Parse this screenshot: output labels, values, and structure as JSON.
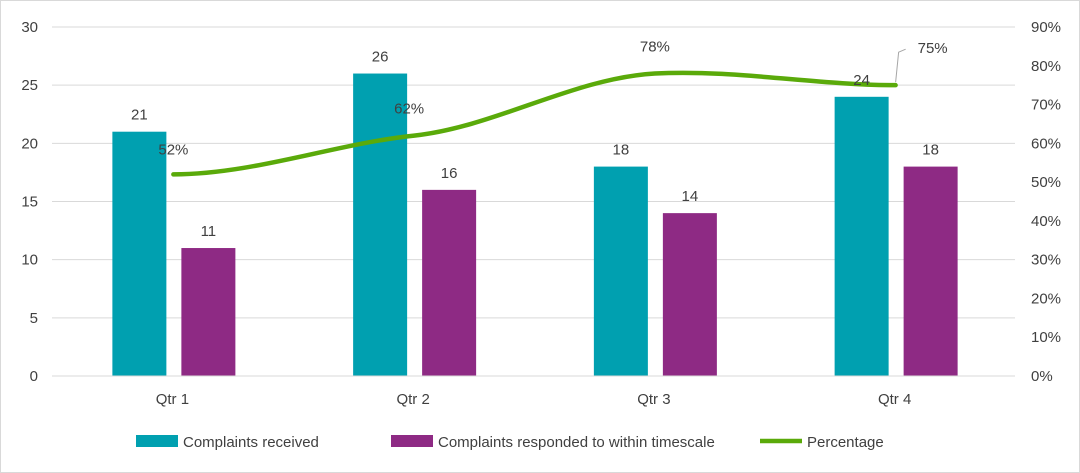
{
  "chart_data": {
    "type": "bar",
    "categories": [
      "Qtr 1",
      "Qtr 2",
      "Qtr 3",
      "Qtr 4"
    ],
    "series": [
      {
        "name": "Complaints received",
        "type": "bar",
        "axis": "left",
        "color": "#00A0B0",
        "values": [
          21,
          26,
          18,
          24
        ],
        "labels": [
          "21",
          "26",
          "18",
          "24"
        ]
      },
      {
        "name": "Complaints responded to within timescale",
        "type": "bar",
        "axis": "left",
        "color": "#8E2A84",
        "values": [
          11,
          16,
          14,
          18
        ],
        "labels": [
          "11",
          "16",
          "14",
          "18"
        ]
      },
      {
        "name": "Percentage",
        "type": "line",
        "axis": "right",
        "color": "#5AAA0A",
        "values": [
          0.52,
          0.62,
          0.78,
          0.75
        ],
        "labels": [
          "52%",
          "62%",
          "78%",
          "75%"
        ]
      }
    ],
    "ylim": [
      0,
      30
    ],
    "yticks": [
      "0",
      "5",
      "10",
      "15",
      "20",
      "25",
      "30"
    ],
    "y2lim": [
      0,
      0.9
    ],
    "y2ticks": [
      "0%",
      "10%",
      "20%",
      "30%",
      "40%",
      "50%",
      "60%",
      "70%",
      "80%",
      "90%"
    ],
    "grid": true,
    "legend": "bottom"
  }
}
